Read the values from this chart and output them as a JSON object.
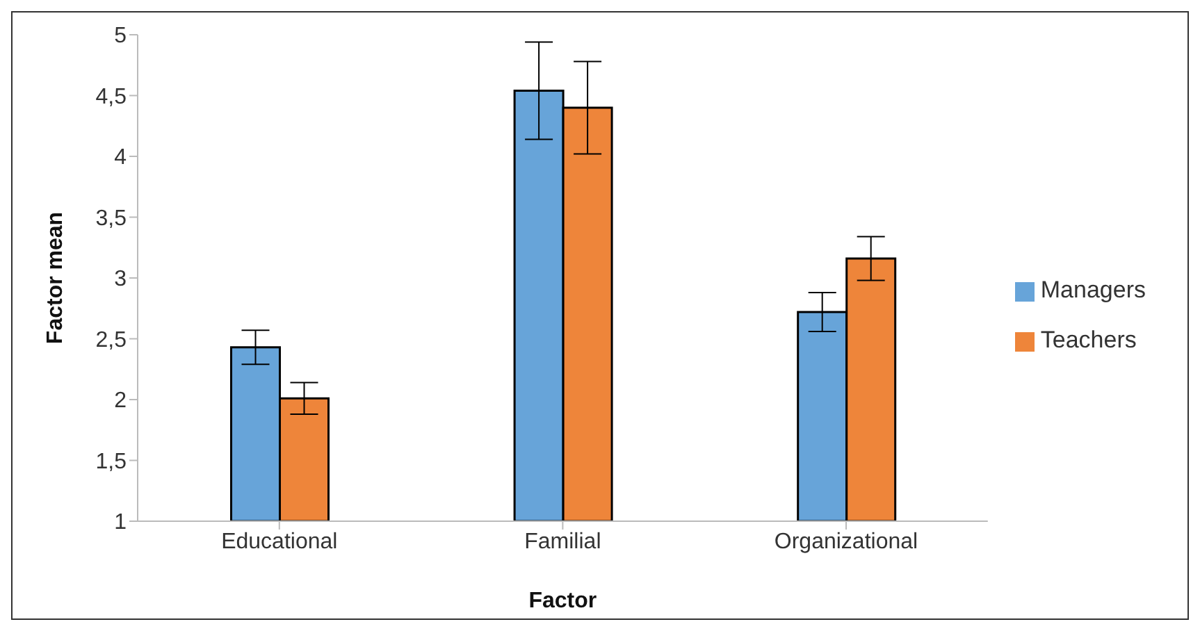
{
  "chart_data": {
    "type": "bar",
    "xlabel": "Factor",
    "ylabel": "Factor mean",
    "categories": [
      "Educational",
      "Familial",
      "Organizational"
    ],
    "series": [
      {
        "name": "Managers",
        "color": "#67a4d9",
        "values": [
          2.43,
          4.54,
          2.72
        ],
        "errors": [
          0.14,
          0.4,
          0.16
        ]
      },
      {
        "name": "Teachers",
        "color": "#ee853a",
        "values": [
          2.01,
          4.4,
          3.16
        ],
        "errors": [
          0.13,
          0.38,
          0.18
        ]
      }
    ],
    "ylim": [
      1,
      5
    ],
    "yticks": [
      1,
      {
        "value": 1.5,
        "label": "1,5"
      },
      2,
      {
        "value": 2.5,
        "label": "2,5"
      },
      3,
      {
        "value": 3.5,
        "label": "3,5"
      },
      4,
      {
        "value": 4.5,
        "label": "4,5"
      },
      5
    ],
    "grid": false,
    "legend": "right"
  }
}
